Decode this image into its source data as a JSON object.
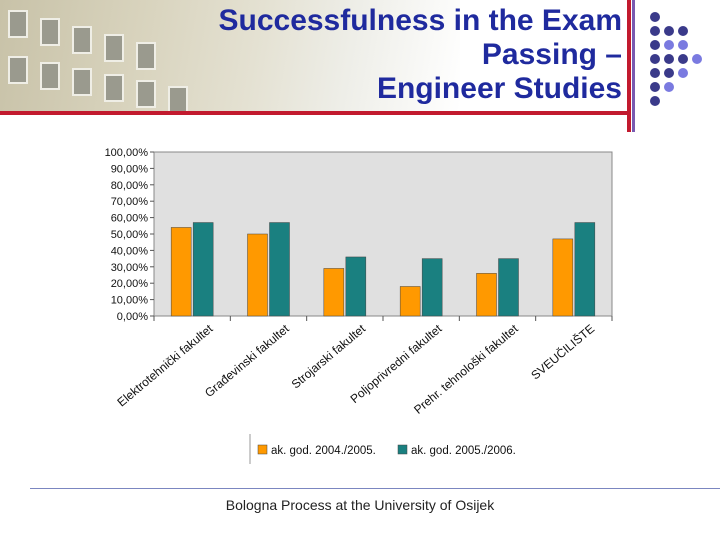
{
  "slide": {
    "title_lines": [
      "Successfulness in the Exam",
      "Passing –",
      "Engineer Studies"
    ],
    "footer": "Bologna Process at the University of Osijek"
  },
  "colors": {
    "title": "#1f2a9e",
    "series1": "#ff9900",
    "series2": "#1a8080",
    "plot_bg": "#e0e0e0"
  },
  "chart_data": {
    "type": "bar",
    "title": "",
    "categories": [
      "Elektrotehnički fakultet",
      "Građevinski fakultet",
      "Strojarski fakultet",
      "Poljoprivredni fakultet",
      "Prehr. tehnološki fakultet",
      "SVEUČILIŠTE"
    ],
    "series": [
      {
        "name": "ak. god. 2004./2005.",
        "values": [
          54,
          50,
          29,
          18,
          26,
          47
        ]
      },
      {
        "name": "ak. god. 2005./2006.",
        "values": [
          57,
          57,
          36,
          35,
          35,
          57
        ]
      }
    ],
    "ylim": [
      0,
      100
    ],
    "yticks": [
      "0,00%",
      "10,00%",
      "20,00%",
      "30,00%",
      "40,00%",
      "50,00%",
      "60,00%",
      "70,00%",
      "80,00%",
      "90,00%",
      "100,00%"
    ],
    "xlabel": "",
    "ylabel": "",
    "legend": "bottom",
    "grid": false
  }
}
